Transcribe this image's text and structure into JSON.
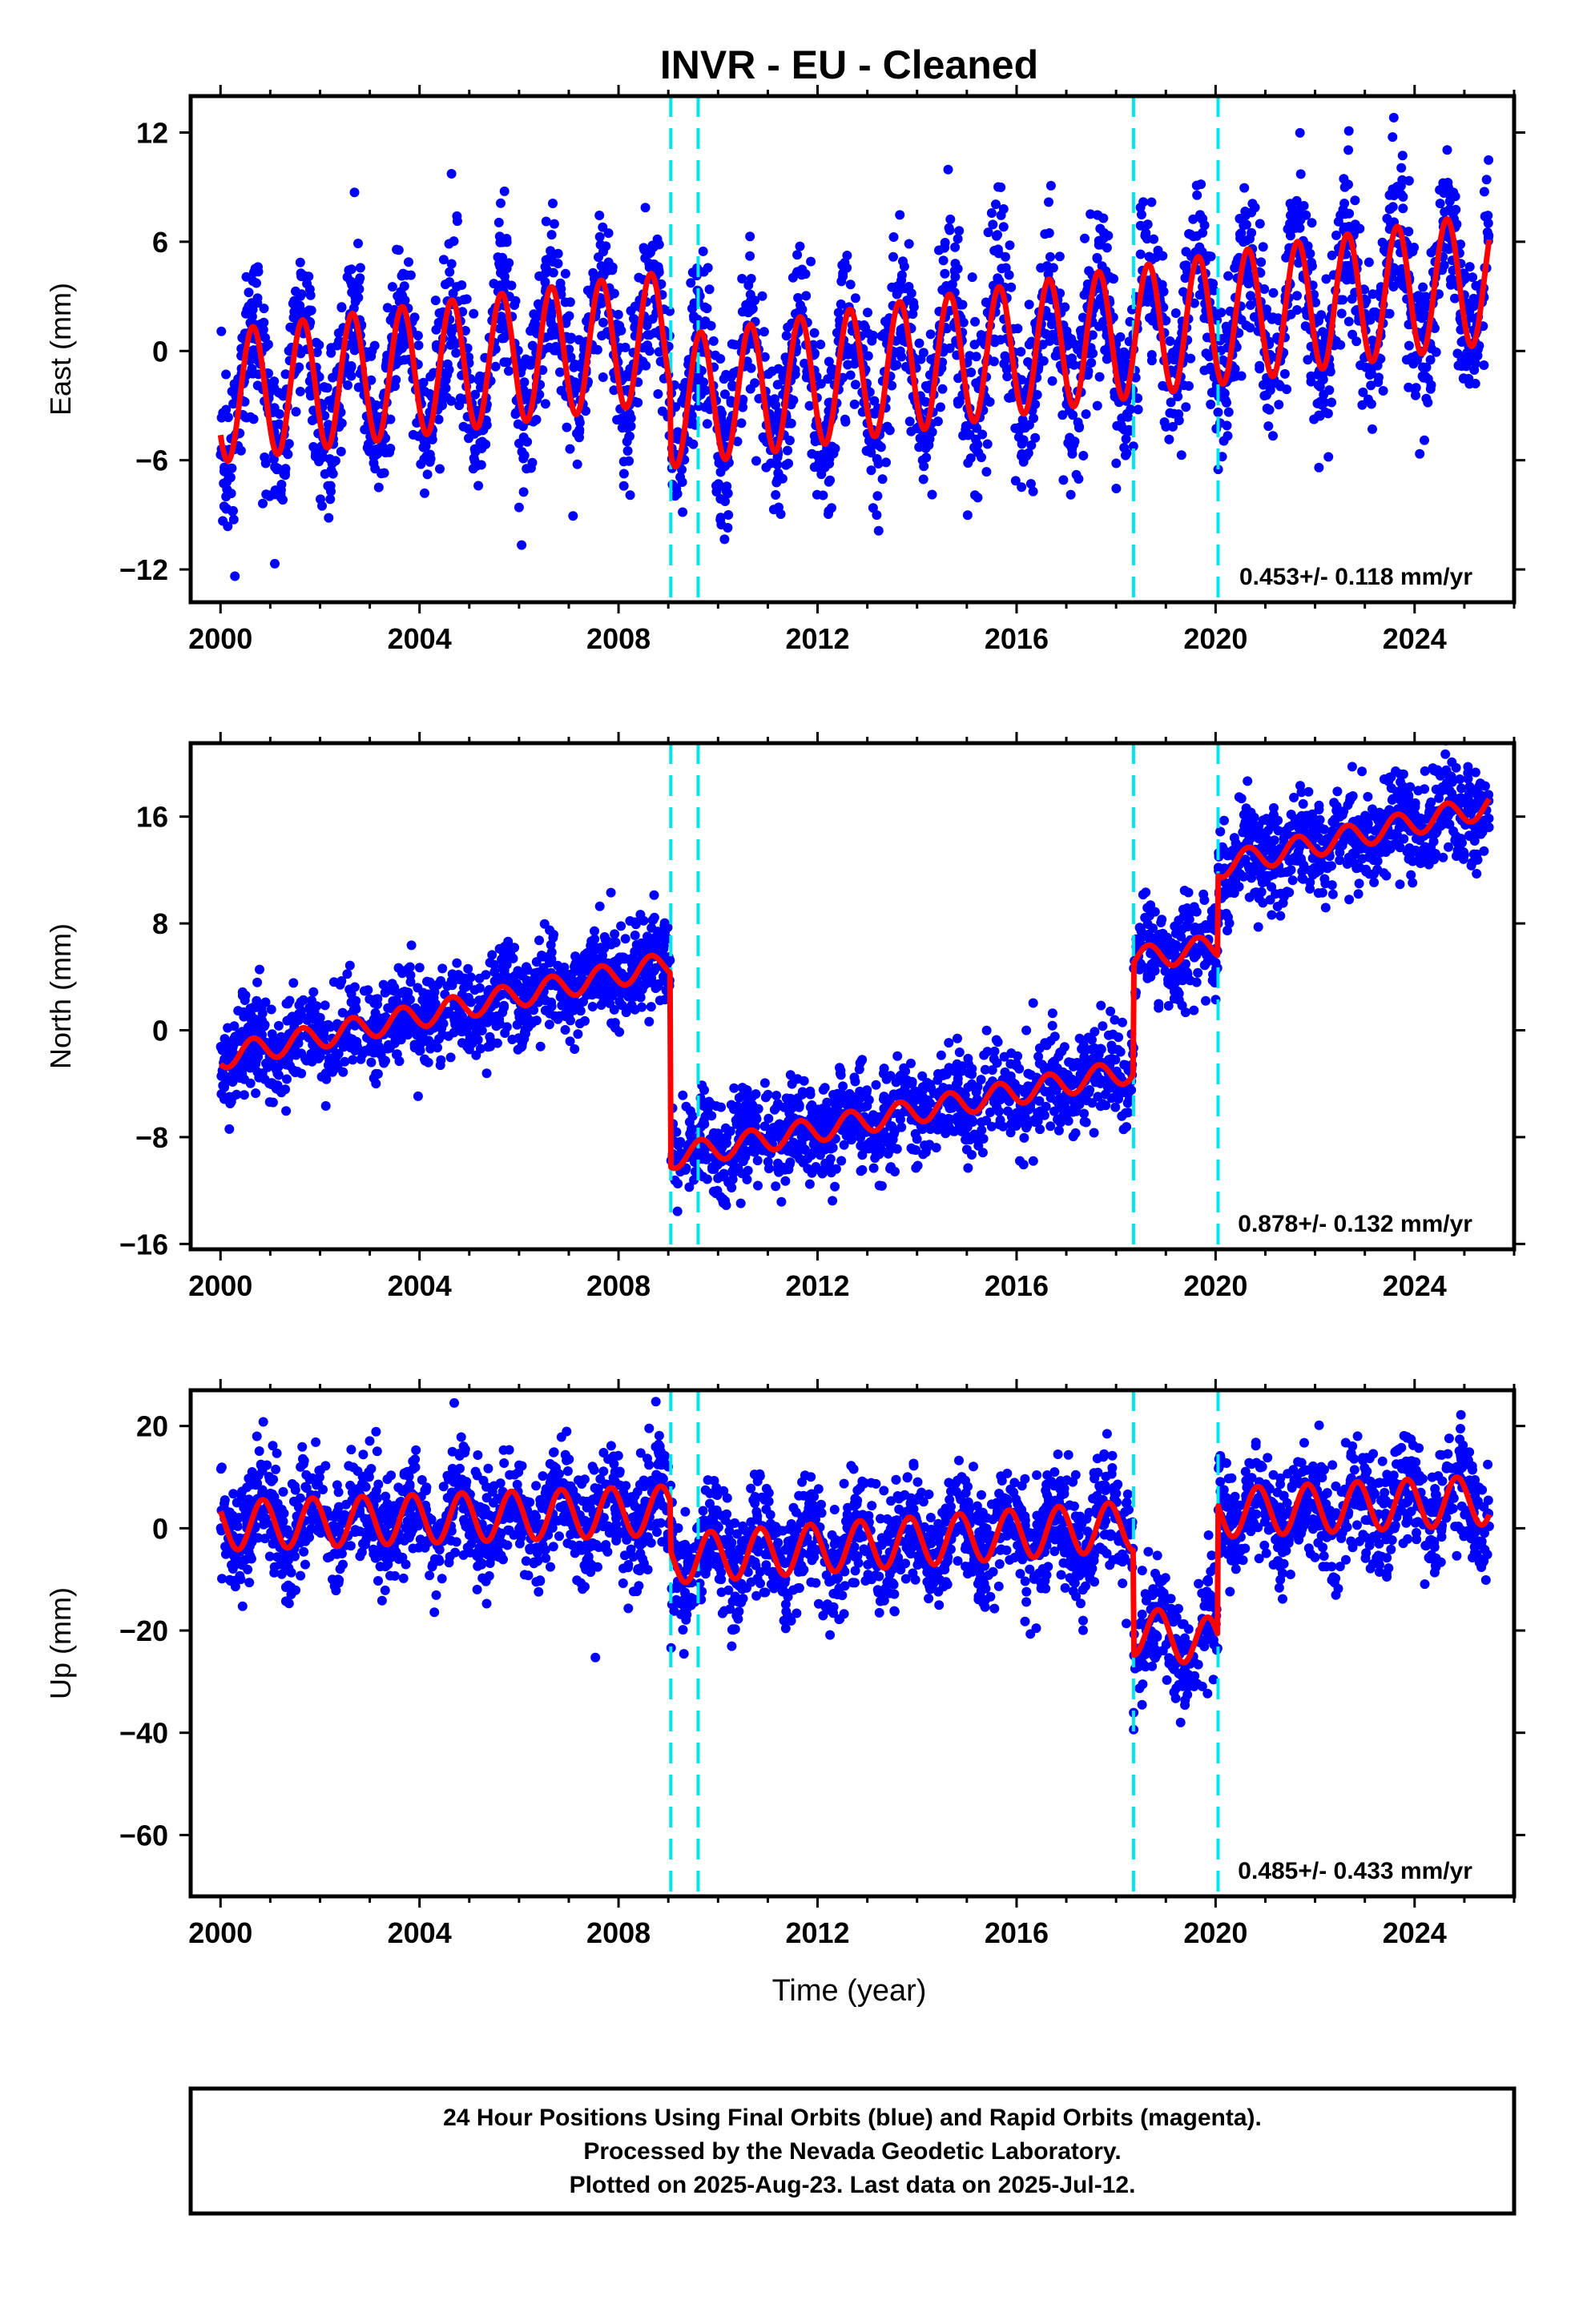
{
  "title": "INVR  - EU - Cleaned",
  "xlabel": "Time (year)",
  "footer": {
    "line1": "24 Hour Positions Using Final Orbits (blue) and Rapid Orbits (magenta).",
    "line2": "Processed by the Nevada Geodetic Laboratory.",
    "line3": "Plotted on 2025-Aug-23. Last data on 2025-Jul-12."
  },
  "colors": {
    "points": "#0000ff",
    "model": "#ff0000",
    "breaks": "#00e5ee",
    "frame": "#000000"
  },
  "chart_data": [
    {
      "type": "scatter",
      "name_axis": "East (mm)",
      "xlim": [
        1999.4,
        2026.0
      ],
      "ylim": [
        -13.8,
        14.0
      ],
      "xticks": [
        2000,
        2004,
        2008,
        2012,
        2016,
        2020,
        2024
      ],
      "yticks": [
        12,
        6,
        0,
        -6,
        -12
      ],
      "ylabel": "East (mm)",
      "rate_label": "0.453+/- 0.118 mm/yr",
      "breaks": [
        2009.05,
        2009.6,
        2018.35,
        2020.05
      ],
      "model": {
        "start": 2000.0,
        "end": 2025.5,
        "amplitude": 3.6,
        "phase_offset": 0.4,
        "segments": [
          {
            "from": 2000.0,
            "to": 2009.05,
            "offset_start": -2.5,
            "offset_end": 0.8
          },
          {
            "from": 2009.05,
            "to": 2025.5,
            "offset_start": -2.8,
            "offset_end": 4.0
          }
        ]
      },
      "scatter": {
        "noise": 2.2,
        "spread_points": 3200
      }
    },
    {
      "type": "scatter",
      "xlim": [
        1999.4,
        2026.0
      ],
      "ylim": [
        -16.4,
        21.5
      ],
      "xticks": [
        2000,
        2004,
        2008,
        2012,
        2016,
        2020,
        2024
      ],
      "yticks": [
        16,
        8,
        0,
        -8,
        -16
      ],
      "ylabel": "North (mm)",
      "rate_label": "0.878+/- 0.132 mm/yr",
      "breaks": [
        2009.05,
        2009.6,
        2018.35,
        2020.05
      ],
      "model": {
        "start": 2000.0,
        "end": 2025.5,
        "amplitude": 0.9,
        "phase_offset": 0.4,
        "segments": [
          {
            "from": 2000.0,
            "to": 2009.05,
            "offset_start": -2.0,
            "offset_end": 5.0
          },
          {
            "from": 2009.05,
            "to": 2018.35,
            "offset_start": -9.5,
            "offset_end": -3.0
          },
          {
            "from": 2018.35,
            "to": 2020.05,
            "offset_start": 5.3,
            "offset_end": 6.3
          },
          {
            "from": 2020.05,
            "to": 2025.5,
            "offset_start": 12.3,
            "offset_end": 16.8
          }
        ]
      },
      "scatter": {
        "noise": 1.8,
        "spread_points": 3200
      }
    },
    {
      "type": "scatter",
      "xlim": [
        1999.4,
        2026.0
      ],
      "ylim": [
        -72.0,
        27.0
      ],
      "xticks": [
        2000,
        2004,
        2008,
        2012,
        2016,
        2020,
        2024
      ],
      "yticks": [
        20,
        0,
        -20,
        -40,
        -60
      ],
      "ylabel": "Up (mm)",
      "rate_label": "0.485+/- 0.433 mm/yr",
      "breaks": [
        2009.05,
        2009.6,
        2018.35,
        2020.05
      ],
      "model": {
        "start": 2000.0,
        "end": 2025.5,
        "amplitude": 4.8,
        "phase_offset": 0.6,
        "segments": [
          {
            "from": 2000.0,
            "to": 2009.05,
            "offset_start": 0.5,
            "offset_end": 3.5
          },
          {
            "from": 2009.05,
            "to": 2018.35,
            "offset_start": -6.0,
            "offset_end": 0.5
          },
          {
            "from": 2018.35,
            "to": 2020.05,
            "offset_start": -20.0,
            "offset_end": -22.5
          },
          {
            "from": 2020.05,
            "to": 2025.5,
            "offset_start": 3.0,
            "offset_end": 5.5
          }
        ]
      },
      "scatter": {
        "noise": 5.5,
        "spread_points": 3200
      }
    }
  ]
}
